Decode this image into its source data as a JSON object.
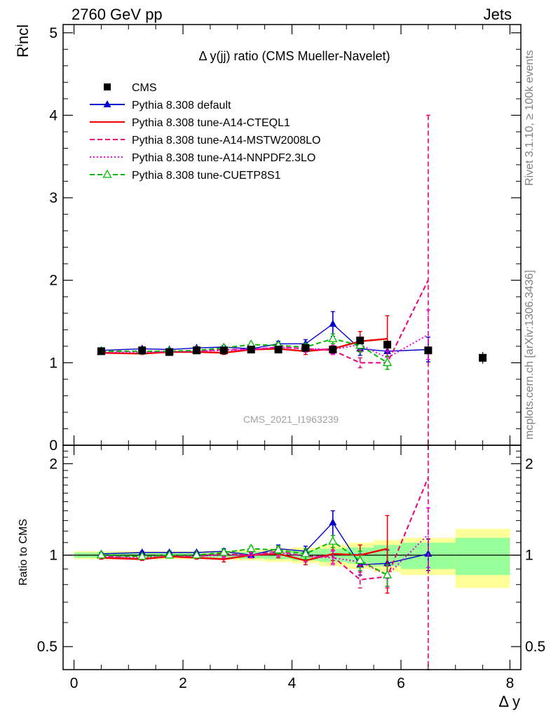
{
  "header": {
    "energy_label": "2760 GeV pp",
    "process_label": "Jets"
  },
  "side_labels": {
    "rivet": "Rivet 3.1.10, ≥ 100k events",
    "mcplots": "mcplots.cern.ch [arXiv:1306.3436]"
  },
  "watermark": "CMS_2021_I1963239",
  "chart_data": [
    {
      "type": "line",
      "title": "Δ y(jj) ratio (CMS Mueller-Navelet)",
      "ylabel": "R_incl",
      "ylim": [
        0,
        5.1
      ],
      "xlim": [
        -0.2,
        8.2
      ],
      "yticks": [
        0,
        1,
        2,
        3,
        4,
        5
      ],
      "legend_position": "top-left",
      "data": {
        "name": "CMS",
        "x": [
          0.5,
          1.25,
          1.75,
          2.25,
          2.75,
          3.25,
          3.75,
          4.25,
          4.75,
          5.25,
          5.75,
          6.5,
          7.5
        ],
        "y": [
          1.14,
          1.15,
          1.13,
          1.15,
          1.15,
          1.16,
          1.16,
          1.18,
          1.16,
          1.27,
          1.22,
          1.15,
          1.06
        ],
        "bins": [
          [
            0,
            1
          ],
          [
            1,
            1.5
          ],
          [
            1.5,
            2
          ],
          [
            2,
            2.5
          ],
          [
            2.5,
            3
          ],
          [
            3,
            3.5
          ],
          [
            3.5,
            4
          ],
          [
            4,
            4.5
          ],
          [
            4.5,
            5
          ],
          [
            5,
            5.5
          ],
          [
            5.5,
            6
          ],
          [
            6,
            7
          ],
          [
            7,
            8
          ]
        ],
        "err": [
          0.01,
          0.01,
          0.01,
          0.01,
          0.01,
          0.01,
          0.02,
          0.03,
          0.04,
          0.05,
          0.06,
          0.06,
          0.07
        ],
        "color": "#000000"
      },
      "series": [
        {
          "name": "Pythia 8.308 default",
          "color": "#0000cc",
          "style": "solid",
          "marker": "triangle-filled",
          "x": [
            0.5,
            1.25,
            1.75,
            2.25,
            2.75,
            3.25,
            3.75,
            4.25,
            4.75,
            5.25,
            5.75,
            6.5
          ],
          "y": [
            1.15,
            1.17,
            1.16,
            1.18,
            1.19,
            1.17,
            1.23,
            1.23,
            1.47,
            1.17,
            1.14,
            1.16
          ],
          "err": [
            0.01,
            0.01,
            0.01,
            0.01,
            0.02,
            0.02,
            0.03,
            0.05,
            0.15,
            0.08,
            0.12,
            0.15
          ]
        },
        {
          "name": "Pythia 8.308 tune-A14-CTEQL1",
          "color": "#ee0000",
          "style": "solid",
          "marker": "none",
          "x": [
            0.5,
            1.25,
            1.75,
            2.25,
            2.75,
            3.25,
            3.75,
            4.25,
            4.75,
            5.25,
            5.75
          ],
          "y": [
            1.12,
            1.11,
            1.13,
            1.13,
            1.12,
            1.16,
            1.17,
            1.14,
            1.17,
            1.26,
            1.29
          ],
          "err": [
            0.01,
            0.01,
            0.01,
            0.01,
            0.02,
            0.02,
            0.03,
            0.04,
            0.06,
            0.12,
            0.28
          ]
        },
        {
          "name": "Pythia 8.308 tune-A14-MSTW2008LO",
          "color": "#ee0077",
          "style": "dashed",
          "marker": "none",
          "x": [
            0.5,
            1.25,
            1.75,
            2.25,
            2.75,
            3.25,
            3.75,
            4.25,
            4.75,
            5.25,
            5.75,
            6.5
          ],
          "y": [
            1.14,
            1.14,
            1.13,
            1.14,
            1.16,
            1.16,
            1.19,
            1.17,
            1.15,
            1.0,
            1.0,
            2.0
          ],
          "err": [
            0.01,
            0.01,
            0.01,
            0.01,
            0.02,
            0.02,
            0.03,
            0.04,
            0.05,
            0.06,
            0.08,
            2.0
          ]
        },
        {
          "name": "Pythia 8.308 tune-A14-NNPDF2.3LO",
          "color": "#ee00ee",
          "style": "dotted",
          "marker": "none",
          "x": [
            0.5,
            1.25,
            1.75,
            2.25,
            2.75,
            3.25,
            3.75,
            4.25,
            4.75,
            5.25,
            5.75,
            6.5
          ],
          "y": [
            1.13,
            1.13,
            1.14,
            1.14,
            1.15,
            1.16,
            1.19,
            1.17,
            1.16,
            1.22,
            1.06,
            1.34
          ],
          "err": [
            0.01,
            0.01,
            0.01,
            0.01,
            0.02,
            0.02,
            0.03,
            0.04,
            0.05,
            0.06,
            0.08,
            0.3
          ]
        },
        {
          "name": "Pythia 8.308 tune-CUETP8S1",
          "color": "#00bb00",
          "style": "dashed",
          "marker": "triangle-open",
          "x": [
            0.5,
            1.25,
            1.75,
            2.25,
            2.75,
            3.25,
            3.75,
            4.25,
            4.75,
            5.25,
            5.75
          ],
          "y": [
            1.14,
            1.14,
            1.14,
            1.15,
            1.18,
            1.22,
            1.21,
            1.19,
            1.29,
            1.21,
            1.0
          ],
          "err": [
            0.01,
            0.01,
            0.01,
            0.01,
            0.02,
            0.02,
            0.03,
            0.04,
            0.06,
            0.08,
            0.08
          ]
        }
      ]
    },
    {
      "type": "line",
      "title": "",
      "ylabel": "Ratio to CMS",
      "xlabel": "Δ y",
      "ylim": [
        0.42,
        2.3
      ],
      "xlim": [
        -0.2,
        8.2
      ],
      "scale": "log",
      "yticks": [
        0.5,
        1,
        2
      ],
      "yticklabels": [
        "0.5",
        "1",
        "2"
      ],
      "xticks": [
        0,
        2,
        4,
        6,
        8
      ],
      "bands": {
        "bins": [
          [
            0,
            1
          ],
          [
            1,
            1.5
          ],
          [
            1.5,
            2
          ],
          [
            2,
            2.5
          ],
          [
            2.5,
            3
          ],
          [
            3,
            3.5
          ],
          [
            3.5,
            4
          ],
          [
            4,
            4.5
          ],
          [
            4.5,
            5
          ],
          [
            5,
            5.5
          ],
          [
            5.5,
            6
          ],
          [
            6,
            7
          ],
          [
            7,
            8
          ]
        ],
        "inner": [
          0.02,
          0.015,
          0.015,
          0.015,
          0.02,
          0.025,
          0.03,
          0.04,
          0.05,
          0.06,
          0.08,
          0.1,
          0.14
        ],
        "outer": [
          0.03,
          0.03,
          0.03,
          0.03,
          0.035,
          0.04,
          0.05,
          0.06,
          0.08,
          0.1,
          0.12,
          0.14,
          0.22
        ],
        "inner_color": "#99ff99",
        "outer_color": "#ffff99"
      },
      "series": [
        {
          "name": "Pythia 8.308 default",
          "color": "#0000cc",
          "style": "solid",
          "marker": "triangle-filled",
          "x": [
            0.5,
            1.25,
            1.75,
            2.25,
            2.75,
            3.25,
            3.75,
            4.25,
            4.75,
            5.25,
            5.75,
            6.5
          ],
          "y": [
            1.01,
            1.02,
            1.02,
            1.02,
            1.03,
            1.0,
            1.05,
            1.03,
            1.28,
            0.93,
            0.94,
            1.01
          ],
          "err": [
            0.01,
            0.01,
            0.01,
            0.01,
            0.02,
            0.02,
            0.03,
            0.04,
            0.12,
            0.07,
            0.1,
            0.12
          ]
        },
        {
          "name": "Pythia 8.308 tune-A14-CTEQL1",
          "color": "#ee0000",
          "style": "solid",
          "marker": "none",
          "x": [
            0.5,
            1.25,
            1.75,
            2.25,
            2.75,
            3.25,
            3.75,
            4.25,
            4.75,
            5.25,
            5.75
          ],
          "y": [
            0.98,
            0.97,
            0.99,
            0.98,
            0.97,
            1.0,
            1.01,
            0.96,
            1.01,
            1.0,
            1.05
          ],
          "err": [
            0.01,
            0.01,
            0.01,
            0.01,
            0.02,
            0.02,
            0.03,
            0.03,
            0.05,
            0.08,
            0.3
          ]
        },
        {
          "name": "Pythia 8.308 tune-A14-MSTW2008LO",
          "color": "#ee0077",
          "style": "dashed",
          "marker": "none",
          "x": [
            0.5,
            1.25,
            1.75,
            2.25,
            2.75,
            3.25,
            3.75,
            4.25,
            4.75,
            5.25,
            5.75,
            6.5
          ],
          "y": [
            0.99,
            0.99,
            1.0,
            0.99,
            1.01,
            1.0,
            1.03,
            0.99,
            0.99,
            0.83,
            0.85,
            1.8
          ],
          "err": [
            0.01,
            0.01,
            0.01,
            0.01,
            0.02,
            0.02,
            0.03,
            0.04,
            0.05,
            0.05,
            0.07,
            1.6
          ]
        },
        {
          "name": "Pythia 8.308 tune-A14-NNPDF2.3LO",
          "color": "#ee00ee",
          "style": "dotted",
          "marker": "none",
          "x": [
            0.5,
            1.25,
            1.75,
            2.25,
            2.75,
            3.25,
            3.75,
            4.25,
            4.75,
            5.25,
            5.75,
            6.5
          ],
          "y": [
            0.99,
            0.98,
            1.0,
            0.99,
            1.0,
            1.0,
            1.02,
            0.99,
            0.98,
            0.95,
            0.86,
            1.17
          ],
          "err": [
            0.01,
            0.01,
            0.01,
            0.01,
            0.02,
            0.02,
            0.03,
            0.04,
            0.05,
            0.06,
            0.07,
            0.26
          ]
        },
        {
          "name": "Pythia 8.308 tune-CUETP8S1",
          "color": "#00bb00",
          "style": "dashed",
          "marker": "triangle-open",
          "x": [
            0.5,
            1.25,
            1.75,
            2.25,
            2.75,
            3.25,
            3.75,
            4.25,
            4.75,
            5.25,
            5.75
          ],
          "y": [
            1.0,
            0.99,
            1.0,
            1.0,
            1.02,
            1.05,
            1.04,
            1.01,
            1.11,
            0.96,
            0.86
          ],
          "err": [
            0.01,
            0.01,
            0.01,
            0.01,
            0.02,
            0.02,
            0.03,
            0.04,
            0.05,
            0.07,
            0.07
          ]
        }
      ]
    }
  ]
}
